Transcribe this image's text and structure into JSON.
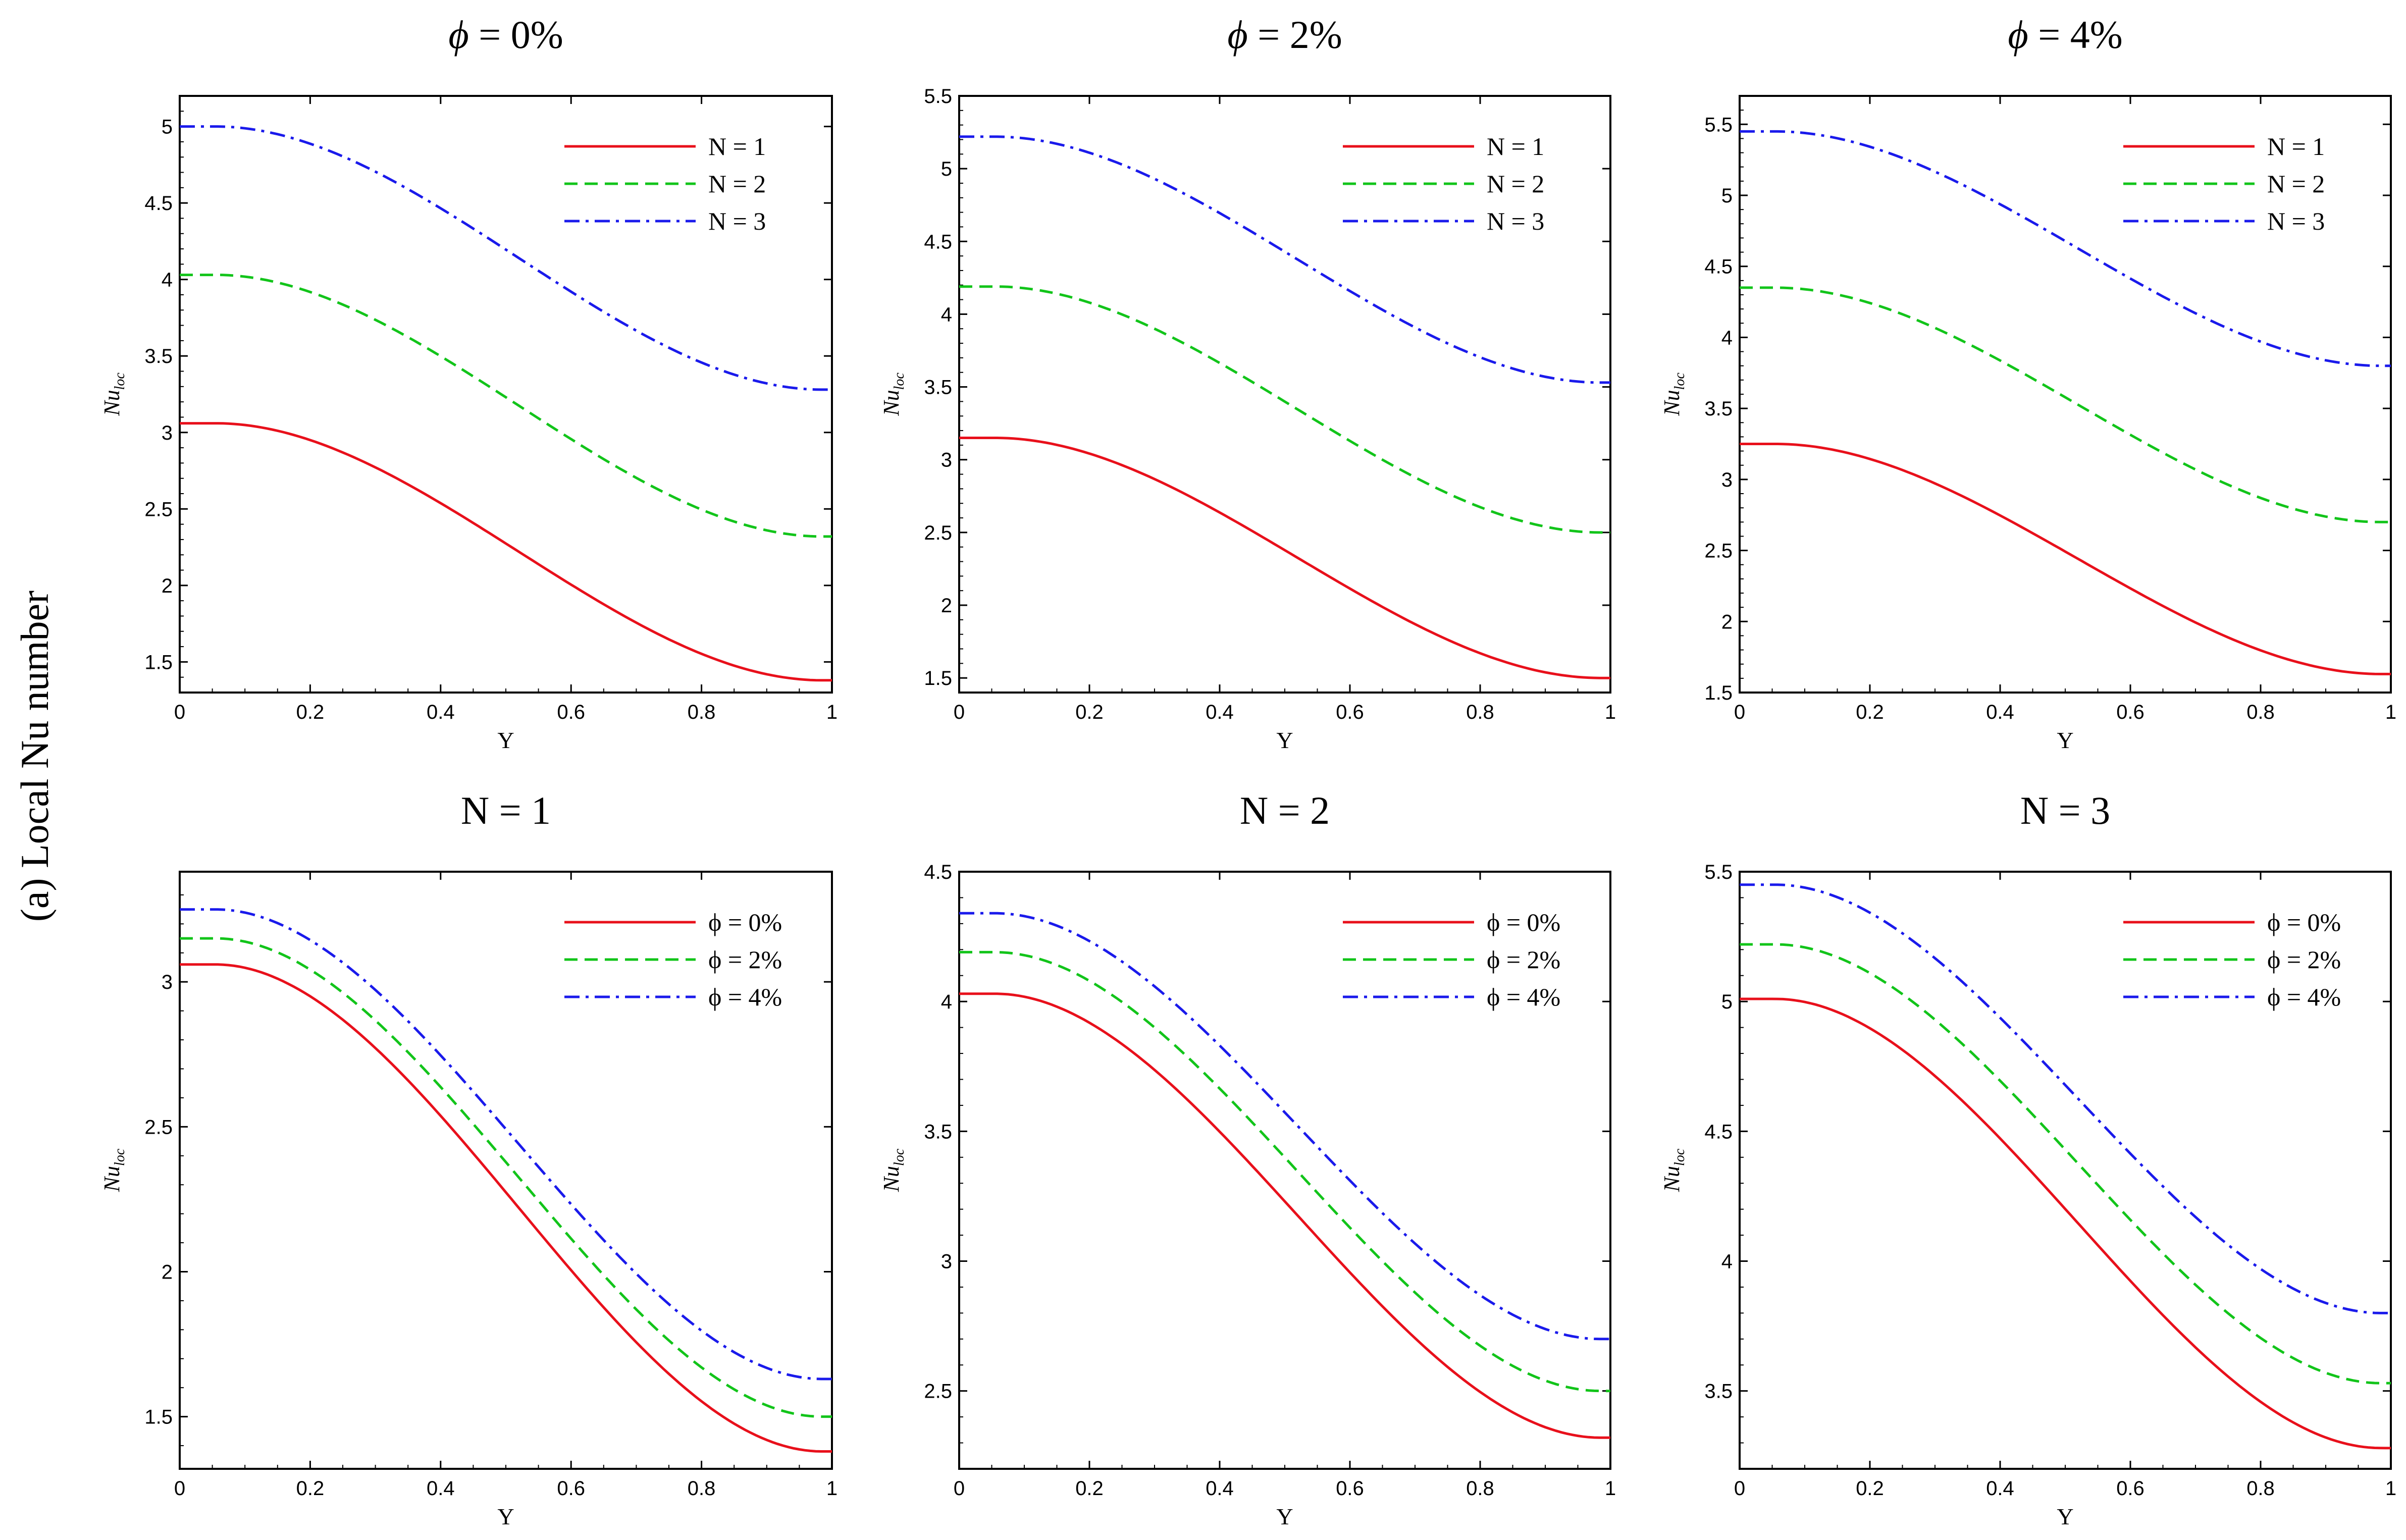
{
  "side_label": "(a) Local Nu number",
  "chart_data": [
    {
      "type": "line",
      "title_symbol": "ϕ",
      "title_text": " = 0%",
      "xlabel": "Y",
      "ylabel": "Nu",
      "ylabel_sub": "loc",
      "xlim": [
        0,
        1
      ],
      "ylim": [
        1.3,
        5.2
      ],
      "xticks": [
        0,
        0.2,
        0.4,
        0.6,
        0.8,
        1
      ],
      "xtick_labels": [
        "0",
        "0.2",
        "0.4",
        "0.6",
        "0.8",
        "1"
      ],
      "yticks": [
        1.5,
        2,
        2.5,
        3,
        3.5,
        4,
        4.5,
        5
      ],
      "ytick_labels": [
        "1.5",
        "2",
        "2.5",
        "3",
        "3.5",
        "4",
        "4.5",
        "5"
      ],
      "legend_position": "top-right",
      "series": [
        {
          "name": "N = 1",
          "color": "#e8101b",
          "dash": "solid",
          "start": 3.06,
          "end": 1.38
        },
        {
          "name": "N = 2",
          "color": "#12c41a",
          "dash": "dashed",
          "start": 4.03,
          "end": 2.32
        },
        {
          "name": "N = 3",
          "color": "#1a1aeb",
          "dash": "dashdot",
          "start": 5.0,
          "end": 3.28
        }
      ]
    },
    {
      "type": "line",
      "title_symbol": "ϕ",
      "title_text": " = 2%",
      "xlabel": "Y",
      "ylabel": "Nu",
      "ylabel_sub": "loc",
      "xlim": [
        0,
        1
      ],
      "ylim": [
        1.4,
        5.5
      ],
      "xticks": [
        0,
        0.2,
        0.4,
        0.6,
        0.8,
        1
      ],
      "xtick_labels": [
        "0",
        "0.2",
        "0.4",
        "0.6",
        "0.8",
        "1"
      ],
      "yticks": [
        1.5,
        2,
        2.5,
        3,
        3.5,
        4,
        4.5,
        5,
        5.5
      ],
      "ytick_labels": [
        "1.5",
        "2",
        "2.5",
        "3",
        "3.5",
        "4",
        "4.5",
        "5",
        "5.5"
      ],
      "legend_position": "top-right",
      "series": [
        {
          "name": "N = 1",
          "color": "#e8101b",
          "dash": "solid",
          "start": 3.15,
          "end": 1.5
        },
        {
          "name": "N = 2",
          "color": "#12c41a",
          "dash": "dashed",
          "start": 4.19,
          "end": 2.5
        },
        {
          "name": "N = 3",
          "color": "#1a1aeb",
          "dash": "dashdot",
          "start": 5.22,
          "end": 3.53
        }
      ]
    },
    {
      "type": "line",
      "title_symbol": "ϕ",
      "title_text": " = 4%",
      "xlabel": "Y",
      "ylabel": "Nu",
      "ylabel_sub": "loc",
      "xlim": [
        0,
        1
      ],
      "ylim": [
        1.5,
        5.7
      ],
      "xticks": [
        0,
        0.2,
        0.4,
        0.6,
        0.8,
        1
      ],
      "xtick_labels": [
        "0",
        "0.2",
        "0.4",
        "0.6",
        "0.8",
        "1"
      ],
      "yticks": [
        1.5,
        2,
        2.5,
        3,
        3.5,
        4,
        4.5,
        5,
        5.5
      ],
      "ytick_labels": [
        "1.5",
        "2",
        "2.5",
        "3",
        "3.5",
        "4",
        "4.5",
        "5",
        "5.5"
      ],
      "legend_position": "top-right",
      "series": [
        {
          "name": "N = 1",
          "color": "#e8101b",
          "dash": "solid",
          "start": 3.25,
          "end": 1.63
        },
        {
          "name": "N = 2",
          "color": "#12c41a",
          "dash": "dashed",
          "start": 4.35,
          "end": 2.7
        },
        {
          "name": "N = 3",
          "color": "#1a1aeb",
          "dash": "dashdot",
          "start": 5.45,
          "end": 3.8
        }
      ]
    },
    {
      "type": "line",
      "title_symbol": "",
      "title_text": "N = 1",
      "xlabel": "Y",
      "ylabel": "Nu",
      "ylabel_sub": "loc",
      "xlim": [
        0,
        1
      ],
      "ylim": [
        1.32,
        3.38
      ],
      "xticks": [
        0,
        0.2,
        0.4,
        0.6,
        0.8,
        1
      ],
      "xtick_labels": [
        "0",
        "0.2",
        "0.4",
        "0.6",
        "0.8",
        "1"
      ],
      "yticks": [
        1.5,
        2,
        2.5,
        3
      ],
      "ytick_labels": [
        "1.5",
        "2",
        "2.5",
        "3"
      ],
      "legend_position": "top-right",
      "series": [
        {
          "name": "ϕ = 0%",
          "color": "#e8101b",
          "dash": "solid",
          "start": 3.06,
          "end": 1.38
        },
        {
          "name": "ϕ = 2%",
          "color": "#12c41a",
          "dash": "dashed",
          "start": 3.15,
          "end": 1.5
        },
        {
          "name": "ϕ = 4%",
          "color": "#1a1aeb",
          "dash": "dashdot",
          "start": 3.25,
          "end": 1.63
        }
      ]
    },
    {
      "type": "line",
      "title_symbol": "",
      "title_text": "N = 2",
      "xlabel": "Y",
      "ylabel": "Nu",
      "ylabel_sub": "loc",
      "xlim": [
        0,
        1
      ],
      "ylim": [
        2.2,
        4.5
      ],
      "xticks": [
        0,
        0.2,
        0.4,
        0.6,
        0.8,
        1
      ],
      "xtick_labels": [
        "0",
        "0.2",
        "0.4",
        "0.6",
        "0.8",
        "1"
      ],
      "yticks": [
        2.5,
        3,
        3.5,
        4,
        4.5
      ],
      "ytick_labels": [
        "2.5",
        "3",
        "3.5",
        "4",
        "4.5"
      ],
      "legend_position": "top-right",
      "series": [
        {
          "name": "ϕ = 0%",
          "color": "#e8101b",
          "dash": "solid",
          "start": 4.03,
          "end": 2.32
        },
        {
          "name": "ϕ = 2%",
          "color": "#12c41a",
          "dash": "dashed",
          "start": 4.19,
          "end": 2.5
        },
        {
          "name": "ϕ = 4%",
          "color": "#1a1aeb",
          "dash": "dashdot",
          "start": 4.34,
          "end": 2.7
        }
      ]
    },
    {
      "type": "line",
      "title_symbol": "",
      "title_text": "N = 3",
      "xlabel": "Y",
      "ylabel": "Nu",
      "ylabel_sub": "loc",
      "xlim": [
        0,
        1
      ],
      "ylim": [
        3.2,
        5.5
      ],
      "xticks": [
        0,
        0.2,
        0.4,
        0.6,
        0.8,
        1
      ],
      "xtick_labels": [
        "0",
        "0.2",
        "0.4",
        "0.6",
        "0.8",
        "1"
      ],
      "yticks": [
        3.5,
        4,
        4.5,
        5,
        5.5
      ],
      "ytick_labels": [
        "3.5",
        "4",
        "4.5",
        "5",
        "5.5"
      ],
      "legend_position": "top-right",
      "series": [
        {
          "name": "ϕ = 0%",
          "color": "#e8101b",
          "dash": "solid",
          "start": 5.01,
          "end": 3.28
        },
        {
          "name": "ϕ = 2%",
          "color": "#12c41a",
          "dash": "dashed",
          "start": 5.22,
          "end": 3.53
        },
        {
          "name": "ϕ = 4%",
          "color": "#1a1aeb",
          "dash": "dashdot",
          "start": 5.45,
          "end": 3.8
        }
      ]
    }
  ]
}
